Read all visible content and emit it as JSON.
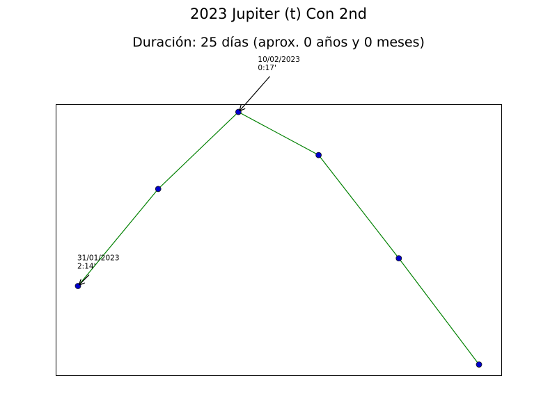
{
  "chart_data": {
    "type": "line",
    "title": "2023 Jupiter (t) Con 2nd",
    "subtitle": "Duración: 25 días (aprox. 0 años y 0 meses)",
    "xlabel": "",
    "ylabel": "",
    "grid": false,
    "line_color": "#008000",
    "marker_color": "#0000cc",
    "series": [
      {
        "y": [
          14,
          77,
          127,
          99,
          32,
          -37
        ]
      }
    ],
    "y_range": [
      -44,
      132
    ],
    "annotations": [
      {
        "point_index": 2,
        "date": "10/02/2023",
        "value": "0:17'"
      },
      {
        "point_index": 0,
        "date": "31/01/2023",
        "value": "2:14'"
      }
    ]
  }
}
